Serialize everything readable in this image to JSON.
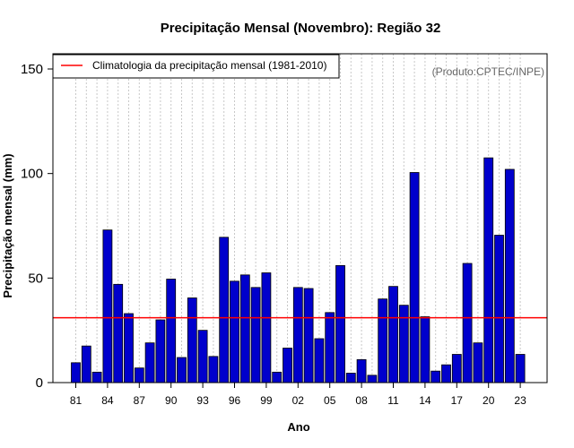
{
  "chart_data": {
    "type": "bar",
    "title": "Precipitação Mensal (Novembro): Região 32",
    "xlabel": "Ano",
    "ylabel": "Precipitação mensal (mm)",
    "ylim": [
      0,
      160
    ],
    "yticks": [
      0,
      50,
      100,
      150
    ],
    "years": [
      1981,
      1982,
      1983,
      1984,
      1985,
      1986,
      1987,
      1988,
      1989,
      1990,
      1991,
      1992,
      1993,
      1994,
      1995,
      1996,
      1997,
      1998,
      1999,
      2000,
      2001,
      2002,
      2003,
      2004,
      2005,
      2006,
      2007,
      2008,
      2009,
      2010,
      2011,
      2012,
      2013,
      2014,
      2015,
      2016,
      2017,
      2018,
      2019,
      2020,
      2021,
      2022,
      2023
    ],
    "values": [
      9.5,
      17.5,
      5,
      73,
      47,
      33,
      7,
      19,
      30,
      49.5,
      12,
      40.5,
      25,
      12.5,
      69.5,
      48.5,
      51.5,
      45.5,
      52.5,
      5,
      16.5,
      45.5,
      45,
      21,
      33.5,
      56,
      4.5,
      11,
      3.5,
      40,
      46,
      37,
      100.5,
      31.5,
      5.5,
      8.5,
      13.5,
      57,
      19,
      107.5,
      70.5,
      102,
      13.5
    ],
    "xtick_labels": [
      "81",
      "84",
      "87",
      "90",
      "93",
      "96",
      "99",
      "02",
      "05",
      "08",
      "11",
      "14",
      "17",
      "20",
      "23"
    ],
    "xtick_years": [
      1981,
      1984,
      1987,
      1990,
      1993,
      1996,
      1999,
      2002,
      2005,
      2008,
      2011,
      2014,
      2017,
      2020,
      2023
    ],
    "climatology": 31,
    "bar_color": "#0000CC",
    "line_color": "#FF0000",
    "grid_color": "#c8c8c8",
    "legend": {
      "label": "Climatologia da precipitação mensal (1981-2010)",
      "position": "top-left"
    },
    "source": "(Produto:CPTEC/INPE)"
  }
}
